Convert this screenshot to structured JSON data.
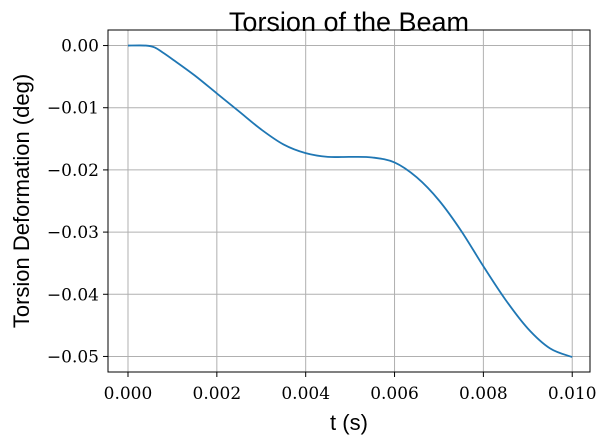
{
  "chart_data": {
    "type": "line",
    "title": "Torsion of the Beam",
    "xlabel": "t (s)",
    "ylabel": "Torsion Deformation (deg)",
    "xlim": [
      -0.00045,
      0.0104
    ],
    "ylim": [
      -0.0525,
      0.0025
    ],
    "xticks": [
      0.0,
      0.002,
      0.004,
      0.006,
      0.008,
      0.01
    ],
    "xtick_labels": [
      "0.000",
      "0.002",
      "0.004",
      "0.006",
      "0.008",
      "0.010"
    ],
    "yticks": [
      0.0,
      -0.01,
      -0.02,
      -0.03,
      -0.04,
      -0.05
    ],
    "ytick_labels": [
      "0.00",
      "−0.01",
      "−0.02",
      "−0.03",
      "−0.04",
      "−0.05"
    ],
    "grid": true,
    "series": [
      {
        "color": "#1f77b4",
        "x": [
          0.0,
          0.0004,
          0.0006,
          0.0008,
          0.001,
          0.0015,
          0.002,
          0.0025,
          0.003,
          0.0035,
          0.004,
          0.0045,
          0.005,
          0.0055,
          0.006,
          0.0065,
          0.007,
          0.0075,
          0.008,
          0.0085,
          0.009,
          0.0095,
          0.01
        ],
        "y": [
          0.0,
          0.0,
          -0.0003,
          -0.0012,
          -0.0022,
          -0.0048,
          -0.0077,
          -0.0106,
          -0.0135,
          -0.0159,
          -0.0173,
          -0.0179,
          -0.0179,
          -0.018,
          -0.0188,
          -0.0212,
          -0.0249,
          -0.0298,
          -0.0355,
          -0.0409,
          -0.0455,
          -0.0487,
          -0.0501
        ]
      }
    ]
  }
}
